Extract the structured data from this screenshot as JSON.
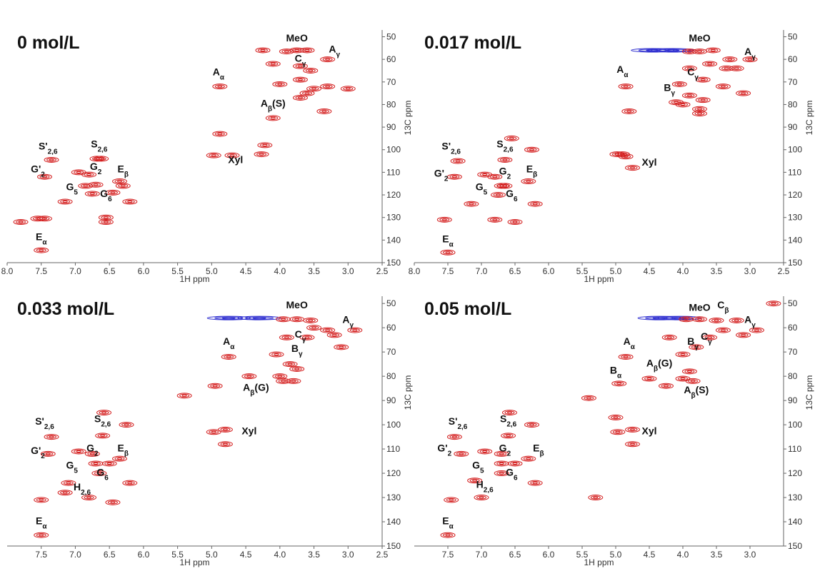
{
  "chart_data": [
    {
      "type": "contour",
      "title": "0 mol/L",
      "x_label": "1H ppm",
      "y_label": "13C ppm",
      "xlim": [
        8,
        2.5
      ],
      "ylim": [
        47,
        150
      ],
      "xticks": [
        {
          "value": 8,
          "label": "8.0"
        },
        7.5,
        {
          "value": 7,
          "label": "7.0"
        },
        6.5,
        {
          "value": 6,
          "label": "6.0"
        },
        5.5,
        {
          "value": 5,
          "label": "5.0"
        },
        4.5,
        {
          "value": 4,
          "label": "4.0"
        },
        3.5,
        {
          "value": 3,
          "label": "3.0"
        },
        2.5
      ],
      "yticks": [
        50,
        60,
        70,
        80,
        90,
        100,
        110,
        120,
        130,
        140,
        150
      ],
      "color": "#d42020",
      "negative_color": "#3030d0",
      "peaks": {
        "x": [
          3.9,
          3.75,
          3.6,
          4.25,
          3.3,
          4.1,
          3.55,
          3.7,
          4.0,
          3.7,
          3.5,
          3.3,
          3.0,
          3.6,
          3.7,
          4.88,
          4.1,
          3.35,
          4.88,
          4.22,
          4.97,
          4.7,
          4.27,
          7.35,
          6.68,
          6.62,
          6.95,
          6.8,
          7.45,
          6.35,
          6.3,
          6.85,
          6.7,
          6.75,
          6.45,
          6.2,
          7.15,
          7.55,
          7.45,
          6.55,
          6.55,
          7.8,
          7.5
        ],
        "y": [
          56.5,
          56,
          56,
          56,
          60,
          62,
          65,
          63,
          71,
          69,
          73,
          72,
          73,
          75,
          77,
          72,
          86,
          83,
          93,
          98,
          102.5,
          102.5,
          102,
          104.5,
          104,
          104,
          110,
          111,
          112,
          114,
          116,
          116,
          115.5,
          119.5,
          119,
          123,
          123,
          130.5,
          130.5,
          130,
          132,
          132,
          144.5
        ]
      },
      "negative_peaks": {
        "x": [],
        "y": []
      },
      "annotations": [
        {
          "text": "MeO",
          "x": 3.75,
          "y": 52
        },
        {
          "text": "A",
          "sub": "γ",
          "x": 3.2,
          "y": 57
        },
        {
          "text": "C",
          "sub": "γ",
          "x": 3.7,
          "y": 61
        },
        {
          "text": "A",
          "sub": "α",
          "x": 4.9,
          "y": 67
        },
        {
          "text": "A",
          "sub": "β",
          "tail": "(S)",
          "x": 4.1,
          "y": 81
        },
        {
          "text": "Xyl",
          "x": 4.65,
          "y": 106
        },
        {
          "text": "S'",
          "sub": "2,6",
          "x": 7.4,
          "y": 100
        },
        {
          "text": "S",
          "sub": "2,6",
          "x": 6.65,
          "y": 99
        },
        {
          "text": "G",
          "sub": "2",
          "x": 6.7,
          "y": 109
        },
        {
          "text": "G'",
          "sub": "2",
          "x": 7.55,
          "y": 110
        },
        {
          "text": "E",
          "sub": "β",
          "x": 6.3,
          "y": 110
        },
        {
          "text": "G",
          "sub": "5",
          "x": 7.05,
          "y": 118
        },
        {
          "text": "G",
          "sub": "6",
          "x": 6.55,
          "y": 121
        },
        {
          "text": "E",
          "sub": "α",
          "x": 7.5,
          "y": 140
        }
      ]
    },
    {
      "type": "contour",
      "title": "0.017 mol/L",
      "x_label": "1H ppm",
      "y_label": "13C ppm",
      "xlim": [
        8,
        2.5
      ],
      "ylim": [
        47,
        150
      ],
      "xticks": [
        {
          "value": 8,
          "label": "8.0"
        },
        7.5,
        {
          "value": 7,
          "label": "7.0"
        },
        6.5,
        {
          "value": 6,
          "label": "6.0"
        },
        5.5,
        {
          "value": 5,
          "label": "5.0"
        },
        4.5,
        {
          "value": 4,
          "label": "4.0"
        },
        3.5,
        {
          "value": 3,
          "label": "3.0"
        },
        2.5
      ],
      "yticks": [
        50,
        60,
        70,
        80,
        90,
        100,
        110,
        120,
        130,
        140,
        150
      ],
      "color": "#d42020",
      "negative_color": "#3030d0",
      "peaks": {
        "x": [
          3.9,
          3.75,
          3.55,
          3.3,
          3.0,
          3.6,
          3.35,
          3.9,
          3.2,
          4.05,
          3.7,
          3.4,
          3.1,
          4.0,
          3.7,
          3.75,
          3.9,
          4.85,
          4.8,
          4.1,
          3.75,
          4.98,
          4.9,
          4.85,
          4.75,
          7.35,
          6.65,
          6.55,
          6.25,
          6.95,
          6.8,
          7.4,
          6.65,
          6.3,
          6.75,
          6.7,
          7.15,
          6.2,
          7.55,
          6.8,
          6.5,
          7.5
        ],
        "y": [
          56.5,
          56.5,
          56,
          60,
          60,
          62,
          64,
          64,
          64,
          71,
          69,
          72,
          75,
          80,
          78,
          82,
          76,
          72,
          83,
          79,
          84,
          102,
          102,
          103,
          108,
          105,
          104.5,
          95,
          100,
          111,
          112,
          112,
          116,
          114,
          120,
          116,
          124,
          124,
          131,
          131,
          132,
          145.5
        ]
      },
      "negative_peaks": {
        "x": [
          4.45,
          4.15
        ],
        "y": [
          56,
          56
        ]
      },
      "annotations": [
        {
          "text": "MeO",
          "x": 3.75,
          "y": 52
        },
        {
          "text": "A",
          "sub": "γ",
          "x": 3.0,
          "y": 58
        },
        {
          "text": "C",
          "sub": "γ",
          "x": 3.85,
          "y": 67
        },
        {
          "text": "A",
          "sub": "α",
          "x": 4.9,
          "y": 66
        },
        {
          "text": "B",
          "sub": "γ",
          "x": 4.2,
          "y": 74
        },
        {
          "text": "Xyl",
          "x": 4.5,
          "y": 107
        },
        {
          "text": "S'",
          "sub": "2,6",
          "x": 7.45,
          "y": 100
        },
        {
          "text": "S",
          "sub": "2,6",
          "x": 6.65,
          "y": 99
        },
        {
          "text": "G",
          "sub": "2",
          "x": 6.65,
          "y": 111
        },
        {
          "text": "G'",
          "sub": "2",
          "x": 7.6,
          "y": 112
        },
        {
          "text": "E",
          "sub": "β",
          "x": 6.25,
          "y": 110
        },
        {
          "text": "G",
          "sub": "5",
          "x": 7.0,
          "y": 118
        },
        {
          "text": "G",
          "sub": "6",
          "x": 6.55,
          "y": 121
        },
        {
          "text": "E",
          "sub": "α",
          "x": 7.5,
          "y": 141
        }
      ]
    },
    {
      "type": "contour",
      "title": "0.033 mol/L",
      "x_label": "1H ppm",
      "y_label": "13C ppm",
      "xlim": [
        8,
        2.5
      ],
      "ylim": [
        47,
        150
      ],
      "xticks": [
        7.5,
        {
          "value": 7,
          "label": "7.0"
        },
        6.5,
        {
          "value": 6,
          "label": "6.0"
        },
        5.5,
        {
          "value": 5,
          "label": "5.0"
        },
        4.5,
        {
          "value": 4,
          "label": "4.0"
        },
        3.5,
        {
          "value": 3,
          "label": "3.0"
        },
        2.5
      ],
      "yticks": [
        50,
        60,
        70,
        80,
        90,
        100,
        110,
        120,
        130,
        140,
        150
      ],
      "color": "#d42020",
      "negative_color": "#3030d0",
      "peaks": {
        "x": [
          3.95,
          3.75,
          3.55,
          3.3,
          2.9,
          3.5,
          3.2,
          3.6,
          3.9,
          4.05,
          3.1,
          4.0,
          3.75,
          3.85,
          3.95,
          4.75,
          4.45,
          5.4,
          4.95,
          3.8,
          4.97,
          4.8,
          4.8,
          7.35,
          6.6,
          6.58,
          6.25,
          6.95,
          6.75,
          7.4,
          6.7,
          6.35,
          6.65,
          6.5,
          7.1,
          6.2,
          7.5,
          7.15,
          6.8,
          6.45,
          7.5
        ],
        "y": [
          56.5,
          56.5,
          57,
          61,
          61,
          60,
          63,
          64,
          64,
          71,
          68,
          80,
          77,
          75,
          82,
          72,
          80,
          88,
          84,
          82,
          103,
          102,
          108,
          105,
          104.5,
          95,
          100,
          111,
          112,
          112,
          116,
          114,
          120,
          116,
          124,
          124,
          131,
          128,
          130,
          132,
          145.5
        ]
      },
      "negative_peaks": {
        "x": [
          4.75,
          4.3
        ],
        "y": [
          56,
          56
        ]
      },
      "annotations": [
        {
          "text": "MeO",
          "x": 3.75,
          "y": 52
        },
        {
          "text": "A",
          "sub": "γ",
          "x": 3.0,
          "y": 58
        },
        {
          "text": "C",
          "sub": "γ",
          "x": 3.7,
          "y": 64
        },
        {
          "text": "A",
          "sub": "α",
          "x": 4.75,
          "y": 67
        },
        {
          "text": "B",
          "sub": "γ",
          "x": 3.75,
          "y": 70
        },
        {
          "text": "A",
          "sub": "β",
          "tail": "(G)",
          "x": 4.35,
          "y": 86
        },
        {
          "text": "Xyl",
          "x": 4.45,
          "y": 104
        },
        {
          "text": "S'",
          "sub": "2,6",
          "x": 7.45,
          "y": 100
        },
        {
          "text": "S",
          "sub": "2,6",
          "x": 6.6,
          "y": 99
        },
        {
          "text": "G",
          "sub": "2",
          "x": 6.75,
          "y": 111
        },
        {
          "text": "G'",
          "sub": "2",
          "x": 7.55,
          "y": 112
        },
        {
          "text": "E",
          "sub": "β",
          "x": 6.3,
          "y": 111
        },
        {
          "text": "G",
          "sub": "5",
          "x": 7.05,
          "y": 118
        },
        {
          "text": "G",
          "sub": "6",
          "x": 6.6,
          "y": 121
        },
        {
          "text": "H",
          "sub": "2,6",
          "x": 6.9,
          "y": 127
        },
        {
          "text": "E",
          "sub": "α",
          "x": 7.5,
          "y": 141
        }
      ]
    },
    {
      "type": "contour",
      "title": "0.05 mol/L",
      "x_label": "1H ppm",
      "y_label": "13C ppm",
      "xlim": [
        8,
        2.5
      ],
      "ylim": [
        47,
        150
      ],
      "xticks": [
        7.5,
        {
          "value": 7,
          "label": "7.0"
        },
        6.5,
        {
          "value": 6,
          "label": "6.0"
        },
        5.5,
        {
          "value": 5,
          "label": "5.0"
        },
        4.5,
        {
          "value": 4,
          "label": "4.0"
        },
        3.5,
        {
          "value": 3,
          "label": "3.0"
        }
      ],
      "yticks": [
        50,
        60,
        70,
        80,
        90,
        100,
        110,
        120,
        130,
        140,
        150
      ],
      "color": "#d42020",
      "negative_color": "#3030d0",
      "peaks": {
        "x": [
          3.95,
          3.75,
          3.5,
          3.2,
          2.9,
          3.4,
          3.1,
          3.6,
          4.2,
          4.0,
          3.8,
          4.85,
          4.95,
          4.5,
          4.25,
          4.0,
          3.9,
          3.85,
          5.4,
          2.65,
          5.0,
          4.97,
          4.75,
          4.75,
          7.4,
          6.6,
          6.58,
          6.25,
          6.95,
          6.7,
          7.3,
          6.7,
          6.3,
          6.7,
          6.5,
          7.1,
          6.2,
          7.45,
          7.0,
          5.3,
          7.5
        ],
        "y": [
          56.5,
          56.5,
          57,
          57,
          61,
          61,
          63,
          64,
          64,
          71,
          68,
          72,
          83,
          81,
          84,
          81,
          78,
          82,
          89,
          50,
          97,
          103,
          102,
          108,
          105,
          104.5,
          95,
          100,
          111,
          112,
          112,
          116,
          114,
          120,
          116,
          123,
          124,
          131,
          130,
          130,
          145.5
        ]
      },
      "negative_peaks": {
        "x": [
          4.35,
          4.05
        ],
        "y": [
          56,
          56
        ]
      },
      "annotations": [
        {
          "text": "MeO",
          "x": 3.75,
          "y": 53
        },
        {
          "text": "C",
          "sub": "β",
          "x": 3.4,
          "y": 52
        },
        {
          "text": "A",
          "sub": "γ",
          "x": 3.0,
          "y": 58
        },
        {
          "text": "C",
          "sub": "γ",
          "x": 3.65,
          "y": 65
        },
        {
          "text": "B",
          "sub": "γ",
          "x": 3.85,
          "y": 67
        },
        {
          "text": "A",
          "sub": "α",
          "x": 4.8,
          "y": 67
        },
        {
          "text": "A",
          "sub": "β",
          "tail": "(G)",
          "x": 4.35,
          "y": 76
        },
        {
          "text": "B",
          "sub": "α",
          "x": 5.0,
          "y": 79
        },
        {
          "text": "A",
          "sub": "β",
          "tail": "(S)",
          "x": 3.8,
          "y": 87
        },
        {
          "text": "Xyl",
          "x": 4.5,
          "y": 104
        },
        {
          "text": "S'",
          "sub": "2,6",
          "x": 7.35,
          "y": 100
        },
        {
          "text": "S",
          "sub": "2,6",
          "x": 6.6,
          "y": 99
        },
        {
          "text": "G",
          "sub": "2",
          "x": 6.65,
          "y": 111
        },
        {
          "text": "G'",
          "sub": "2",
          "x": 7.55,
          "y": 111
        },
        {
          "text": "E",
          "sub": "β",
          "x": 6.15,
          "y": 111
        },
        {
          "text": "G",
          "sub": "5",
          "x": 7.05,
          "y": 118
        },
        {
          "text": "G",
          "sub": "6",
          "x": 6.55,
          "y": 121
        },
        {
          "text": "H",
          "sub": "2,6",
          "x": 6.95,
          "y": 126
        },
        {
          "text": "E",
          "sub": "α",
          "x": 7.5,
          "y": 141
        }
      ]
    }
  ]
}
